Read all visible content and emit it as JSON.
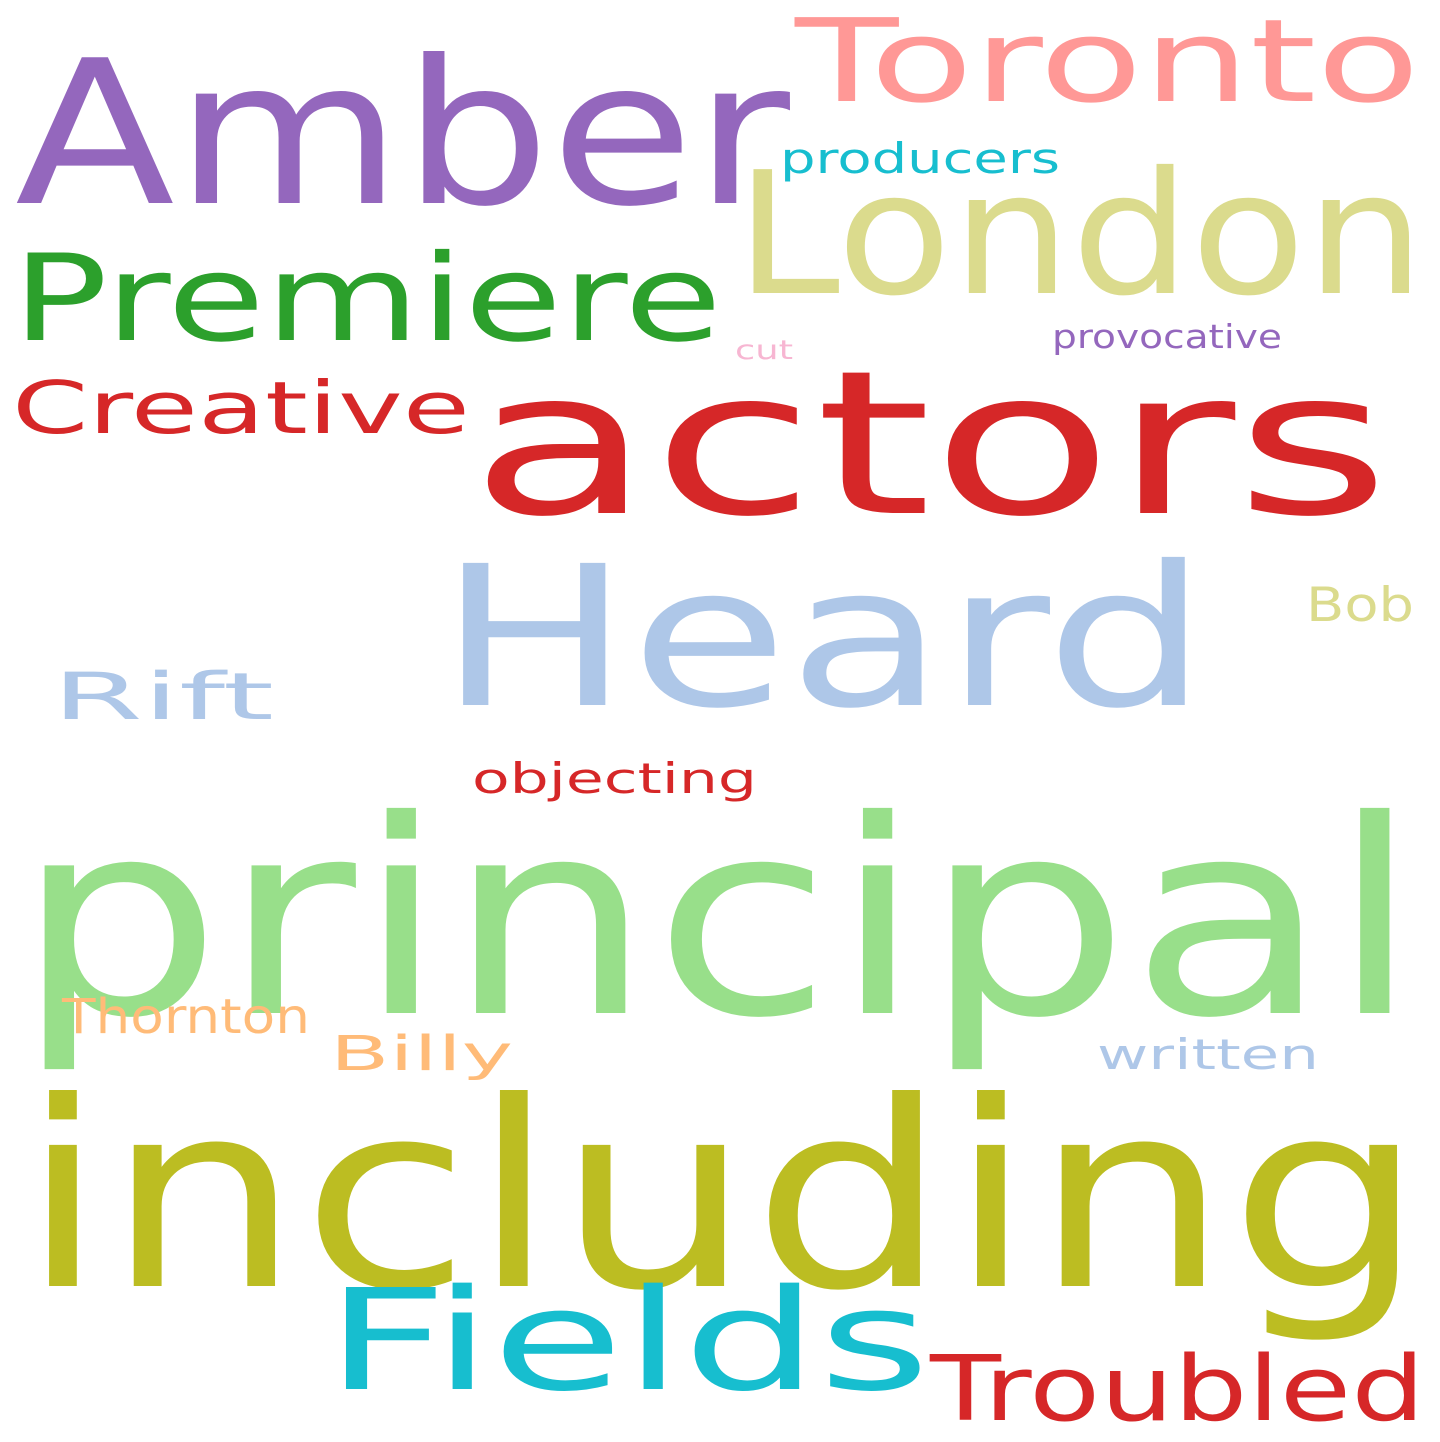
{
  "words": [
    {
      "text": "Amber",
      "color": "#9467bd"
    },
    {
      "text": "Toronto",
      "color": "#ff9896"
    },
    {
      "text": "London",
      "color": "#dbdb8d"
    },
    {
      "text": "producers",
      "color": "#17becf"
    },
    {
      "text": "Premiere",
      "color": "#2ca02c"
    },
    {
      "text": "provocative",
      "color": "#9467bd"
    },
    {
      "text": "cut",
      "color": "#f7b6d2"
    },
    {
      "text": "Creative",
      "color": "#d62728"
    },
    {
      "text": "actors",
      "color": "#d62728"
    },
    {
      "text": "Heard",
      "color": "#aec7e8"
    },
    {
      "text": "Bob",
      "color": "#dbdb8d"
    },
    {
      "text": "Rift",
      "color": "#aec7e8"
    },
    {
      "text": "objecting",
      "color": "#d62728"
    },
    {
      "text": "principal",
      "color": "#98df8a"
    },
    {
      "text": "Thornton",
      "color": "#ffbb78"
    },
    {
      "text": "Billy",
      "color": "#ffbb78"
    },
    {
      "text": "written",
      "color": "#aec7e8"
    },
    {
      "text": "including",
      "color": "#bcbd22"
    },
    {
      "text": "Fields",
      "color": "#17becf"
    },
    {
      "text": "Troubled",
      "color": "#d62728"
    }
  ]
}
